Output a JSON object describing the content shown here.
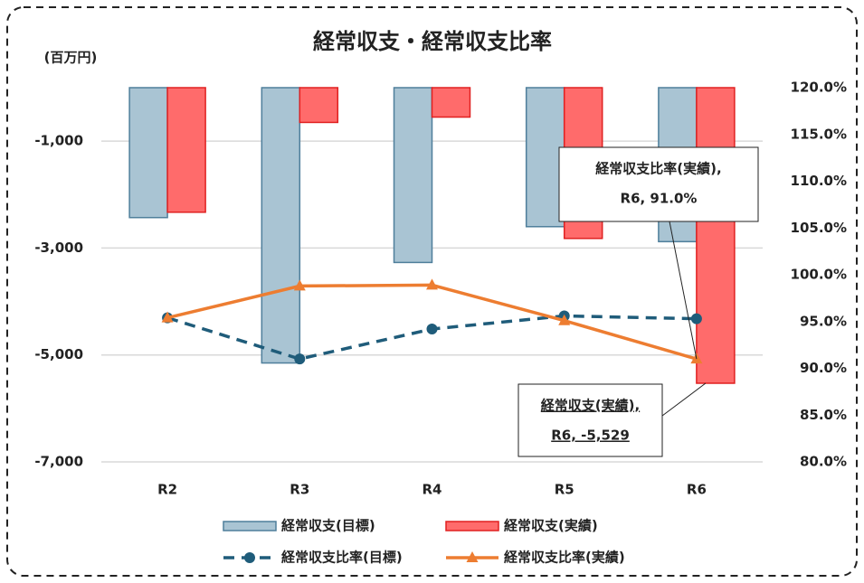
{
  "chart_data": {
    "type": "bar_line",
    "title": "経常収支・経常収支比率",
    "y_label": "(百万円)",
    "categories": [
      "R2",
      "R3",
      "R4",
      "R5",
      "R6"
    ],
    "series": [
      {
        "name": "経常収支(目標)",
        "type": "bar",
        "color": "#a9c4d3",
        "values": [
          -2430,
          -5150,
          -3270,
          -2600,
          -2880
        ]
      },
      {
        "name": "経常収支(実績)",
        "type": "bar",
        "color": "#ff6b6b",
        "values": [
          -2330,
          -650,
          -550,
          -2820,
          -5529
        ]
      },
      {
        "name": "経常収支比率(目標)",
        "type": "line",
        "axis": "y2",
        "color": "#1f5c7a",
        "values": [
          95.4,
          91.0,
          94.2,
          95.6,
          95.3
        ]
      },
      {
        "name": "経常収支比率(実績)",
        "type": "line",
        "axis": "y2",
        "color": "#ed7d31",
        "values": [
          95.4,
          98.8,
          98.9,
          95.1,
          91.0
        ]
      }
    ],
    "ylim": [
      -7000,
      0
    ],
    "yticks": [
      {
        "value": -1000,
        "label": "-1,000"
      },
      {
        "value": -3000,
        "label": "-3,000"
      },
      {
        "value": -5000,
        "label": "-5,000"
      },
      {
        "value": -7000,
        "label": "-7,000"
      }
    ],
    "y2lim": [
      80,
      120
    ],
    "y2ticks": [
      {
        "value": 120,
        "label": "120.0%"
      },
      {
        "value": 115,
        "label": "115.0%"
      },
      {
        "value": 110,
        "label": "110.0%"
      },
      {
        "value": 105,
        "label": "105.0%"
      },
      {
        "value": 100,
        "label": "100.0%"
      },
      {
        "value": 95,
        "label": "95.0%"
      },
      {
        "value": 90,
        "label": "90.0%"
      },
      {
        "value": 85,
        "label": "85.0%"
      },
      {
        "value": 80,
        "label": "80.0%"
      }
    ],
    "grid": true,
    "annotations": [
      {
        "text": [
          "経常収支比率(実績),",
          "R6, 91.0%"
        ]
      },
      {
        "text": [
          "経常収支(実績),",
          "R6, -5,529"
        ]
      }
    ]
  }
}
